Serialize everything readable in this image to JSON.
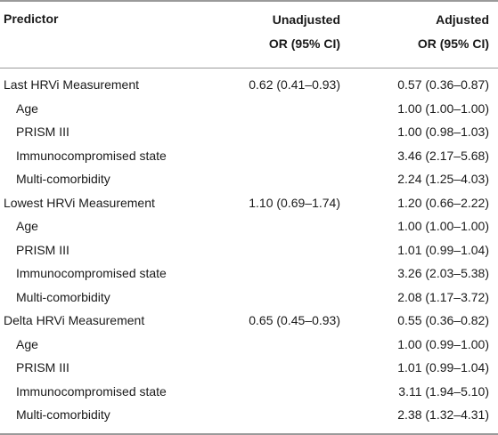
{
  "header": {
    "predictor": "Predictor",
    "unadjusted_line1": "Unadjusted",
    "unadjusted_line2": "OR (95% CI)",
    "adjusted_line1": "Adjusted",
    "adjusted_line2": "OR (95% CI)"
  },
  "rows": [
    {
      "predictor": "Last HRVi Measurement",
      "unadjusted": "0.62 (0.41–0.93)",
      "adjusted": "0.57 (0.36–0.87)"
    },
    {
      "predictor": "Age",
      "unadjusted": "",
      "adjusted": "1.00 (1.00–1.00)"
    },
    {
      "predictor": "PRISM III",
      "unadjusted": "",
      "adjusted": "1.00 (0.98–1.03)"
    },
    {
      "predictor": "Immunocompromised state",
      "unadjusted": "",
      "adjusted": "3.46 (2.17–5.68)"
    },
    {
      "predictor": "Multi-comorbidity",
      "unadjusted": "",
      "adjusted": "2.24 (1.25–4.03)"
    },
    {
      "predictor": "Lowest HRVi Measurement",
      "unadjusted": "1.10 (0.69–1.74)",
      "adjusted": "1.20 (0.66–2.22)"
    },
    {
      "predictor": "Age",
      "unadjusted": "",
      "adjusted": "1.00 (1.00–1.00)"
    },
    {
      "predictor": "PRISM III",
      "unadjusted": "",
      "adjusted": "1.01 (0.99–1.04)"
    },
    {
      "predictor": "Immunocompromised state",
      "unadjusted": "",
      "adjusted": "3.26 (2.03–5.38)"
    },
    {
      "predictor": "Multi-comorbidity",
      "unadjusted": "",
      "adjusted": "2.08 (1.17–3.72)"
    },
    {
      "predictor": "Delta HRVi Measurement",
      "unadjusted": "0.65 (0.45–0.93)",
      "adjusted": "0.55 (0.36–0.82)"
    },
    {
      "predictor": "Age",
      "unadjusted": "",
      "adjusted": "1.00 (0.99–1.00)"
    },
    {
      "predictor": "PRISM III",
      "unadjusted": "",
      "adjusted": "1.01 (0.99–1.04)"
    },
    {
      "predictor": "Immunocompromised state",
      "unadjusted": "",
      "adjusted": "3.11 (1.94–5.10)"
    },
    {
      "predictor": "Multi-comorbidity",
      "unadjusted": "",
      "adjusted": "2.38 (1.32–4.31)"
    }
  ]
}
